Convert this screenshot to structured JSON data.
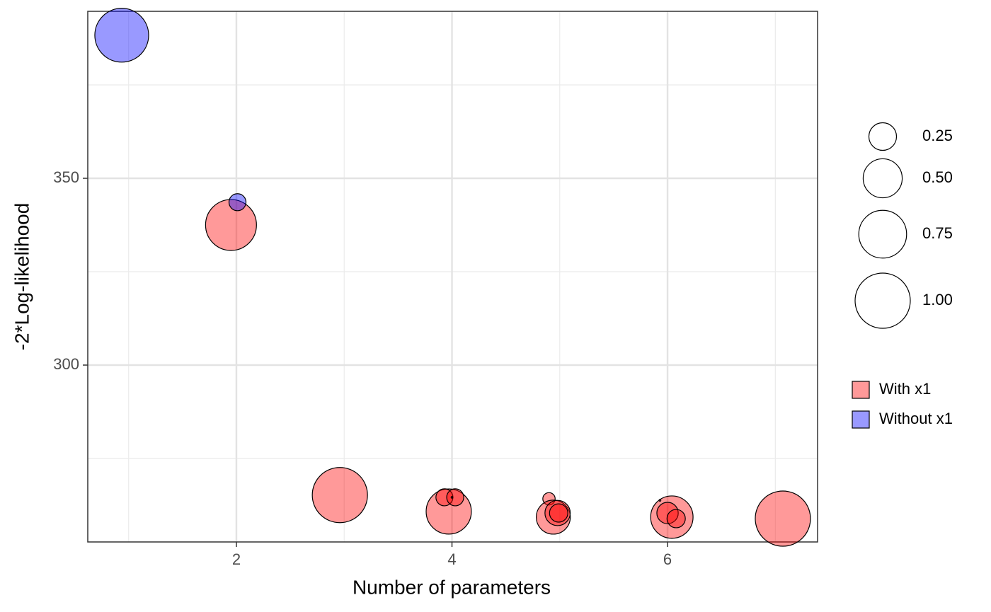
{
  "chart_data": {
    "type": "scatter",
    "x_label": "Number of parameters",
    "y_label": "-2*Log-likelihood",
    "xlim": [
      0.621,
      7.392
    ],
    "ylim": [
      252.65,
      394.7
    ],
    "xticks": [
      2,
      4,
      6
    ],
    "yticks": [
      300,
      350
    ],
    "x_minor_ticks": [
      1,
      3,
      5,
      7
    ],
    "y_minor_ticks": [
      275,
      325,
      375
    ],
    "grid": true,
    "alpha": 0.4,
    "size_legend": [
      0.25,
      0.5,
      0.75,
      1.0
    ],
    "size_legend_labels": [
      "0.25",
      "0.50",
      "0.75",
      "1.00"
    ],
    "legend": "right",
    "series": [
      {
        "name": "With x1",
        "color": "#ff0000",
        "x": [
          1.95,
          2.96,
          3.97,
          3.93,
          4.03,
          4.0,
          4.9,
          4.94,
          4.98,
          4.99,
          6.04,
          6.0,
          6.08,
          5.93,
          7.07
        ],
        "values": [
          337.5,
          265.2,
          260.8,
          264.6,
          264.6,
          264.6,
          264.2,
          259.3,
          260.4,
          260.4,
          259.3,
          260.4,
          258.9,
          263.8,
          258.9
        ],
        "sizes": [
          0.85,
          1.0,
          0.67,
          0.095,
          0.095,
          0.001,
          0.05,
          0.38,
          0.21,
          0.11,
          0.59,
          0.15,
          0.11,
          0.001,
          1.0
        ]
      },
      {
        "name": "Without x1",
        "color": "#0000ff",
        "x": [
          0.936,
          2.01
        ],
        "values": [
          388.3,
          343.6
        ],
        "sizes": [
          0.95,
          0.095
        ]
      }
    ]
  }
}
